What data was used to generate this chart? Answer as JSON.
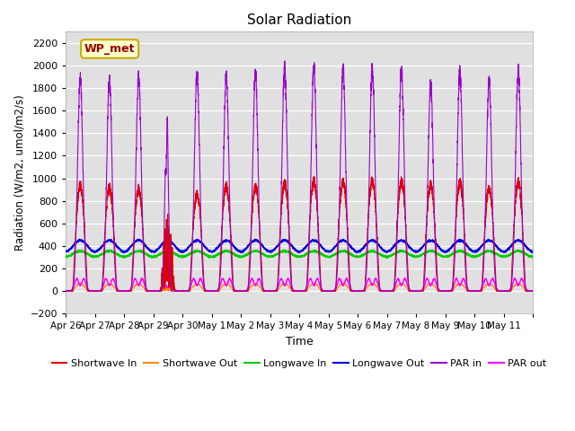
{
  "title": "Solar Radiation",
  "xlabel": "Time",
  "ylabel": "Radiation (W/m2, umol/m2/s)",
  "ylim": [
    -200,
    2300
  ],
  "yticks": [
    -200,
    0,
    200,
    400,
    600,
    800,
    1000,
    1200,
    1400,
    1600,
    1800,
    2000,
    2200
  ],
  "background_color": "#ffffff",
  "plot_bg_color": "#e0e0e0",
  "legend_label": "WP_met",
  "legend_box_color": "#ffffcc",
  "legend_box_edge": "#ccaa00",
  "colors": {
    "shortwave_in": "#dd0000",
    "shortwave_out": "#ff8800",
    "longwave_in": "#00cc00",
    "longwave_out": "#0000dd",
    "par_in": "#9900cc",
    "par_out": "#ff00ff"
  },
  "date_labels": [
    "Apr 26",
    "Apr 27",
    "Apr 28",
    "Apr 29",
    "Apr 30",
    "May 1",
    "May 2",
    "May 3",
    "May 4",
    "May 5",
    "May 6",
    "May 7",
    "May 8",
    "May 9",
    "May 10",
    "May 11"
  ],
  "n_days": 16,
  "samples_per_day": 288
}
